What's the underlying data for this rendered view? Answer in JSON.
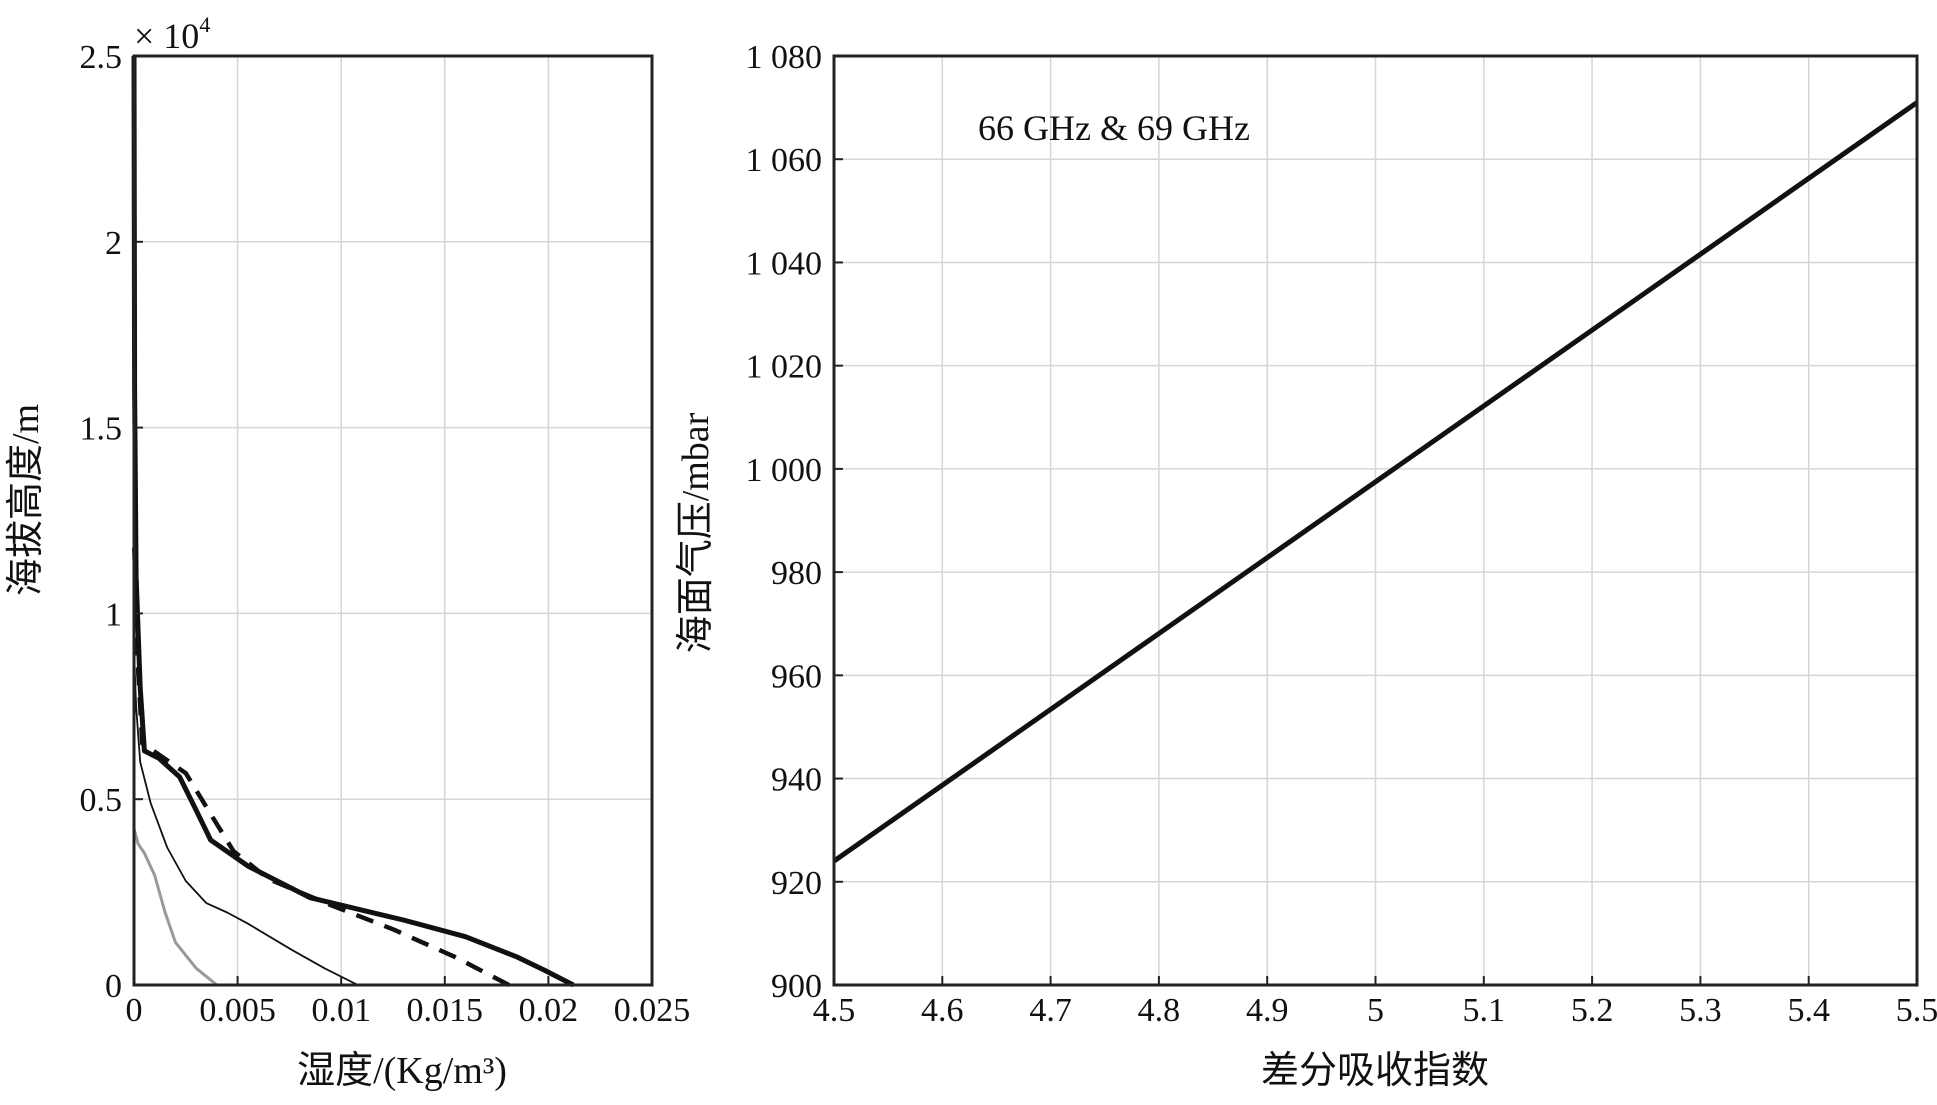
{
  "chart_data": [
    {
      "type": "line",
      "xlabel": "湿度/(Kg/m³)",
      "ylabel": "海拔高度/m",
      "y_multiplier": {
        "base": "× 10",
        "exponent": "4"
      },
      "xlim": [
        0,
        0.025
      ],
      "ylim": [
        0,
        25000
      ],
      "x_ticks": [
        0,
        0.005,
        0.01,
        0.015,
        0.02,
        0.025
      ],
      "x_tick_labels": [
        "0",
        "0.005",
        "0.01",
        "0.015",
        "0.02",
        "0.025"
      ],
      "y_ticks": [
        0,
        5000,
        10000,
        15000,
        20000,
        25000
      ],
      "y_tick_labels": [
        "0",
        "0.5",
        "1",
        "1.5",
        "2",
        "2.5"
      ],
      "grid": true,
      "series": [
        {
          "style": "thick-solid",
          "color": "#111111",
          "points": [
            [
              0.0212,
              0
            ],
            [
              0.0198,
              400
            ],
            [
              0.0185,
              750
            ],
            [
              0.016,
              1300
            ],
            [
              0.013,
              1750
            ],
            [
              0.0085,
              2350
            ],
            [
              0.0055,
              3200
            ],
            [
              0.0037,
              3900
            ],
            [
              0.003,
              4700
            ],
            [
              0.0022,
              5600
            ],
            [
              0.0012,
              6100
            ],
            [
              0.0005,
              6300
            ],
            [
              0.0003,
              8000
            ],
            [
              0.0001,
              11000
            ],
            [
              3e-05,
              16000
            ],
            [
              0,
              25000
            ]
          ]
        },
        {
          "style": "thick-dashed",
          "color": "#111111",
          "points": [
            [
              0.0181,
              0
            ],
            [
              0.0155,
              750
            ],
            [
              0.0125,
              1500
            ],
            [
              0.0095,
              2150
            ],
            [
              0.0065,
              2850
            ],
            [
              0.0048,
              3600
            ],
            [
              0.0037,
              4600
            ],
            [
              0.0025,
              5700
            ],
            [
              0.0012,
              6200
            ],
            [
              0.0004,
              6500
            ],
            [
              0.0002,
              8500
            ],
            [
              0,
              12000
            ]
          ]
        },
        {
          "style": "thin-solid",
          "color": "#111111",
          "points": [
            [
              0.0108,
              0
            ],
            [
              0.0092,
              450
            ],
            [
              0.0076,
              950
            ],
            [
              0.0055,
              1650
            ],
            [
              0.0045,
              1950
            ],
            [
              0.0035,
              2200
            ],
            [
              0.0025,
              2800
            ],
            [
              0.0016,
              3700
            ],
            [
              0.0008,
              4900
            ],
            [
              0.0003,
              6000
            ],
            [
              0.0001,
              7500
            ],
            [
              0,
              9000
            ]
          ]
        },
        {
          "style": "thin-gray",
          "color": "#999999",
          "points": [
            [
              0.004,
              0
            ],
            [
              0.003,
              450
            ],
            [
              0.002,
              1150
            ],
            [
              0.0015,
              1950
            ],
            [
              0.001,
              2950
            ],
            [
              0.0005,
              3550
            ],
            [
              0.0002,
              3800
            ],
            [
              0.0001,
              4000
            ],
            [
              0,
              4200
            ]
          ]
        }
      ]
    },
    {
      "type": "line",
      "xlabel": "差分吸收指数",
      "ylabel": "海面气压/mbar",
      "annotation": "66 GHz & 69 GHz",
      "xlim": [
        4.5,
        5.5
      ],
      "ylim": [
        900,
        1080
      ],
      "x_ticks": [
        4.5,
        4.6,
        4.7,
        4.8,
        4.9,
        5,
        5.1,
        5.2,
        5.3,
        5.4,
        5.5
      ],
      "x_tick_labels": [
        "4.5",
        "4.6",
        "4.7",
        "4.8",
        "4.9",
        "5",
        "5.1",
        "5.2",
        "5.3",
        "5.4",
        "5.5"
      ],
      "y_ticks": [
        900,
        920,
        940,
        960,
        980,
        1000,
        1020,
        1040,
        1060,
        1080
      ],
      "y_tick_labels": [
        "900",
        "920",
        "940",
        "960",
        "980",
        "1 000",
        "1 020",
        "1 040",
        "1 060",
        "1 080"
      ],
      "grid": true,
      "series": [
        {
          "style": "thick-solid",
          "color": "#111111",
          "x": [
            4.5,
            5.5
          ],
          "y": [
            924,
            1071
          ]
        }
      ]
    }
  ]
}
